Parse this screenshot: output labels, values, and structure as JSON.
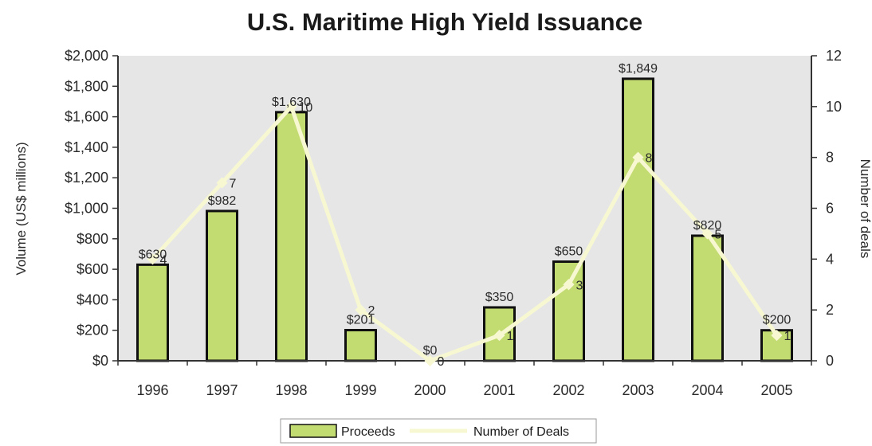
{
  "chart_data": {
    "type": "bar",
    "title": "U.S. Maritime High Yield Issuance",
    "categories": [
      "1996",
      "1997",
      "1998",
      "1999",
      "2000",
      "2001",
      "2002",
      "2003",
      "2004",
      "2005"
    ],
    "series": [
      {
        "name": "Proceeds",
        "type": "bar",
        "axis": "left",
        "values": [
          630,
          982,
          1630,
          201,
          0,
          350,
          650,
          1849,
          820,
          200
        ],
        "labels": [
          "$630",
          "$982",
          "$1,630",
          "$201",
          "$0",
          "$350",
          "$650",
          "$1,849",
          "$820",
          "$200"
        ],
        "color": "#c3dc72"
      },
      {
        "name": "Number of Deals",
        "type": "line",
        "axis": "right",
        "values": [
          4,
          7,
          10,
          2,
          0,
          1,
          3,
          8,
          5,
          1
        ],
        "labels": [
          "4",
          "7",
          "10",
          "2",
          "0",
          "1",
          "3",
          "8",
          "5",
          "1"
        ],
        "color": "#f7f8d2"
      }
    ],
    "ylabel": "Volume (US$ millions)",
    "y2label": "Number of deals",
    "ylim": [
      0,
      2000
    ],
    "y2lim": [
      0,
      12
    ],
    "yticks": [
      "$0",
      "$200",
      "$400",
      "$600",
      "$800",
      "$1,000",
      "$1,200",
      "$1,400",
      "$1,600",
      "$1,800",
      "$2,000"
    ],
    "y2ticks": [
      "0",
      "2",
      "4",
      "6",
      "8",
      "10",
      "12"
    ],
    "grid": false,
    "legend": "bottom",
    "plot_background": "#e6e6e6"
  }
}
